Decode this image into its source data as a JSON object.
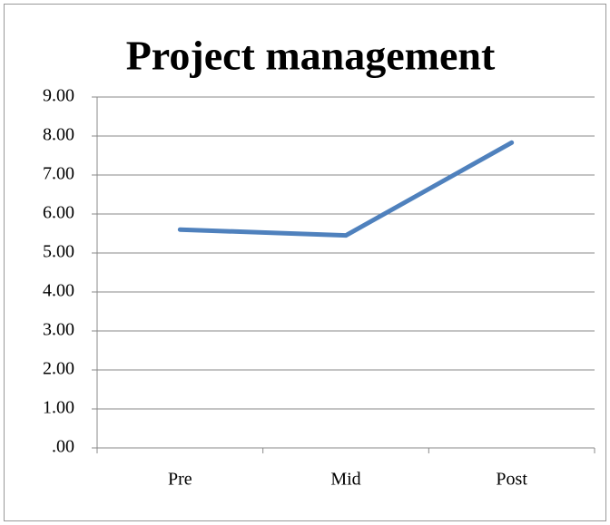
{
  "chart_data": {
    "type": "line",
    "title": "Project management",
    "categories": [
      "Pre",
      "Mid",
      "Post"
    ],
    "series": [
      {
        "name": "Project management",
        "color": "#4f81bd",
        "values": [
          5.6,
          5.45,
          7.83
        ]
      }
    ],
    "ylim": [
      0,
      9
    ],
    "yticks": [
      {
        "value": 0,
        "label": ".00"
      },
      {
        "value": 1,
        "label": "1.00"
      },
      {
        "value": 2,
        "label": "2.00"
      },
      {
        "value": 3,
        "label": "3.00"
      },
      {
        "value": 4,
        "label": "4.00"
      },
      {
        "value": 5,
        "label": "5.00"
      },
      {
        "value": 6,
        "label": "6.00"
      },
      {
        "value": 7,
        "label": "7.00"
      },
      {
        "value": 8,
        "label": "8.00"
      },
      {
        "value": 9,
        "label": "9.00"
      }
    ],
    "grid": true
  }
}
